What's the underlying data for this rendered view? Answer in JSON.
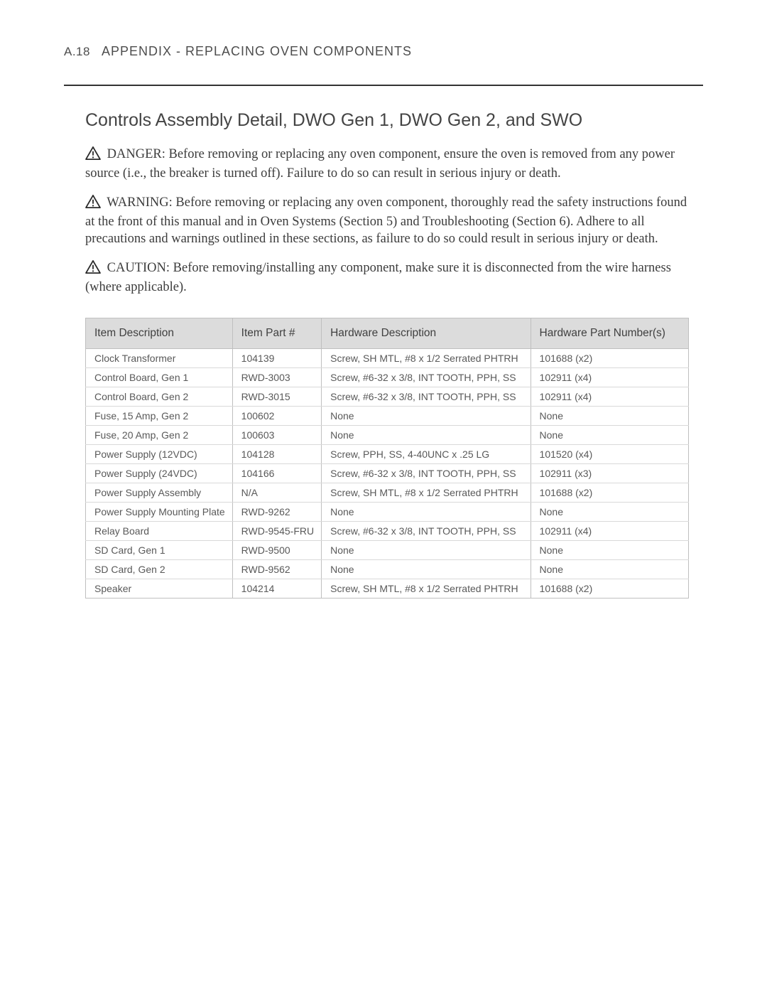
{
  "header": {
    "page_number": "A.18",
    "title": "APPENDIX - REPLACING OVEN COMPONENTS"
  },
  "section_title": "Controls Assembly Detail, DWO Gen 1, DWO Gen 2, and SWO",
  "safety": [
    {
      "label": "DANGER:",
      "text": "Before removing or replacing any oven component, ensure the oven is removed from any power source (i.e., the breaker is turned off). Failure to do so can result in serious injury or death."
    },
    {
      "label": "WARNING:",
      "text": "Before removing or replacing any oven component, thoroughly read the safety instructions found at the front of this manual and in Oven Systems (Section 5) and Troubleshooting (Section 6). Adhere to all precautions and warnings outlined in these sections, as failure to do so could result in serious injury or death."
    },
    {
      "label": "CAUTION:",
      "text": "Before removing/installing any component, make sure it is disconnected from the wire harness (where applicable)."
    }
  ],
  "table": {
    "columns": [
      "Item Description",
      "Item Part #",
      "Hardware Description",
      "Hardware Part Number(s)"
    ],
    "rows": [
      [
        "Clock Transformer",
        "104139",
        "Screw, SH MTL, #8 x 1/2 Serrated PHTRH",
        "101688 (x2)"
      ],
      [
        "Control Board, Gen 1",
        "RWD-3003",
        "Screw, #6-32 x 3/8, INT TOOTH, PPH, SS",
        "102911 (x4)"
      ],
      [
        "Control Board, Gen 2",
        "RWD-3015",
        "Screw, #6-32 x 3/8, INT TOOTH, PPH, SS",
        "102911 (x4)"
      ],
      [
        "Fuse, 15 Amp, Gen 2",
        "100602",
        "None",
        "None"
      ],
      [
        "Fuse, 20 Amp, Gen 2",
        "100603",
        "None",
        "None"
      ],
      [
        "Power Supply (12VDC)",
        "104128",
        "Screw, PPH, SS, 4-40UNC x .25 LG",
        "101520 (x4)"
      ],
      [
        "Power Supply (24VDC)",
        "104166",
        "Screw, #6-32 x 3/8, INT TOOTH, PPH, SS",
        "102911 (x3)"
      ],
      [
        "Power Supply Assembly",
        "N/A",
        "Screw, SH MTL, #8 x 1/2 Serrated PHTRH",
        "101688 (x2)"
      ],
      [
        "Power Supply Mounting Plate",
        "RWD-9262",
        "None",
        "None"
      ],
      [
        "Relay Board",
        "RWD-9545-FRU",
        "Screw, #6-32 x 3/8, INT TOOTH, PPH, SS",
        "102911 (x4)"
      ],
      [
        "SD Card, Gen 1",
        "RWD-9500",
        "None",
        "None"
      ],
      [
        "SD Card, Gen 2",
        "RWD-9562",
        "None",
        "None"
      ],
      [
        "Speaker",
        "104214",
        "Screw, SH MTL, #8 x 1/2 Serrated PHTRH",
        "101688 (x2)"
      ]
    ]
  },
  "colors": {
    "text": "#4a4a4a",
    "rule": "#333333",
    "th_bg": "#dcdcdc",
    "border": "#bfbfbf",
    "row_border": "#d9d9d9"
  }
}
